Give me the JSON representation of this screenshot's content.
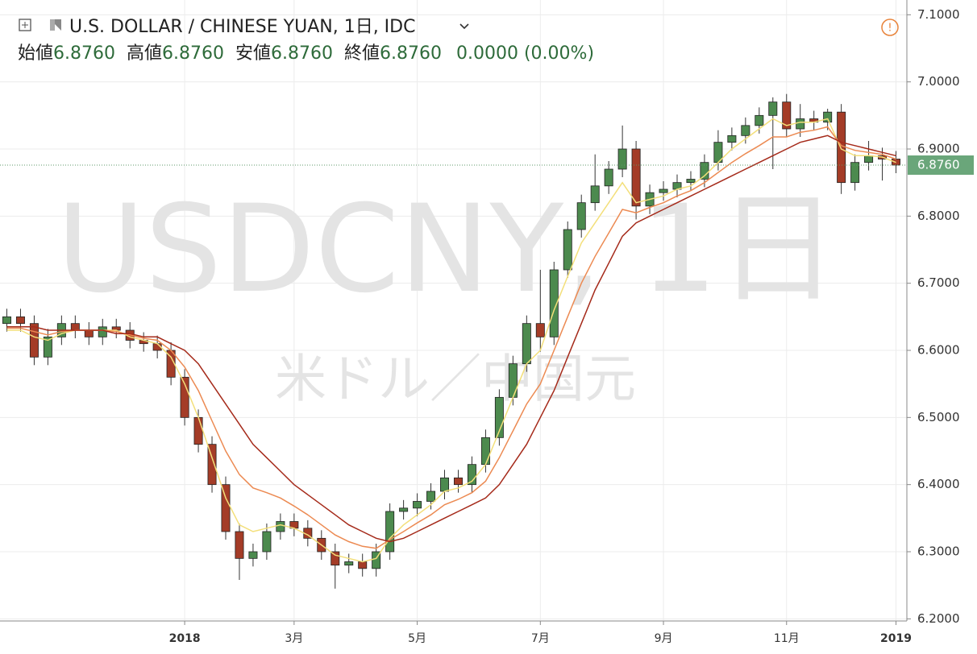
{
  "chart_data": {
    "type": "candlestick",
    "title": "U.S. DOLLAR / CHINESE YUAN, 1日, IDC",
    "watermark": "USDCNY, 1日",
    "watermark_subtitle": "米ドル／中国元",
    "ohlc_header": [
      {
        "label": "始値",
        "value": "6.8760"
      },
      {
        "label": "高値",
        "value": "6.8760"
      },
      {
        "label": "安値",
        "value": "6.8760"
      },
      {
        "label": "終値",
        "value": "6.8760"
      }
    ],
    "change": "0.0000 (0.00%)",
    "last_label": "6.8760",
    "categories": [
      null,
      null,
      null,
      null,
      null,
      null,
      null,
      null,
      null,
      null,
      null,
      null,
      null,
      "2018",
      null,
      null,
      null,
      null,
      null,
      null,
      null,
      "3月",
      null,
      null,
      null,
      null,
      null,
      null,
      null,
      null,
      "5月",
      null,
      null,
      null,
      null,
      null,
      null,
      null,
      null,
      "7月",
      null,
      null,
      null,
      null,
      null,
      null,
      null,
      null,
      "9月",
      null,
      null,
      null,
      null,
      null,
      null,
      null,
      null,
      "11月",
      null,
      null,
      null,
      null,
      null,
      null,
      null,
      "2019"
    ],
    "open": [
      6.64,
      6.65,
      6.64,
      6.59,
      6.62,
      6.64,
      6.63,
      6.62,
      6.635,
      6.63,
      6.615,
      6.61,
      6.6,
      6.56,
      6.5,
      6.46,
      6.4,
      6.33,
      6.29,
      6.3,
      6.33,
      6.345,
      6.335,
      6.32,
      6.3,
      6.28,
      6.285,
      6.275,
      6.3,
      6.36,
      6.365,
      6.375,
      6.39,
      6.41,
      6.4,
      6.43,
      6.47,
      6.53,
      6.58,
      6.64,
      6.62,
      6.72,
      6.78,
      6.82,
      6.845,
      6.87,
      6.9,
      6.815,
      6.835,
      6.84,
      6.85,
      6.855,
      6.88,
      6.91,
      6.92,
      6.935,
      6.95,
      6.97,
      6.93,
      6.945,
      6.94,
      6.955,
      6.85,
      6.88,
      6.89,
      6.885
    ],
    "high": [
      6.662,
      6.662,
      6.652,
      6.632,
      6.652,
      6.652,
      6.642,
      6.647,
      6.647,
      6.642,
      6.627,
      6.622,
      6.612,
      6.572,
      6.512,
      6.472,
      6.412,
      6.342,
      6.312,
      6.342,
      6.357,
      6.357,
      6.347,
      6.332,
      6.312,
      6.297,
      6.297,
      6.312,
      6.372,
      6.377,
      6.387,
      6.402,
      6.422,
      6.422,
      6.442,
      6.482,
      6.542,
      6.592,
      6.652,
      6.72,
      6.732,
      6.792,
      6.832,
      6.892,
      6.882,
      6.935,
      6.912,
      6.847,
      6.852,
      6.862,
      6.867,
      6.892,
      6.928,
      6.932,
      6.947,
      6.962,
      6.977,
      6.982,
      6.967,
      6.957,
      6.96,
      6.967,
      6.892,
      6.912,
      6.902,
      6.897
    ],
    "low": [
      6.628,
      6.628,
      6.578,
      6.578,
      6.608,
      6.618,
      6.608,
      6.608,
      6.618,
      6.603,
      6.598,
      6.588,
      6.548,
      6.488,
      6.448,
      6.388,
      6.318,
      6.258,
      6.278,
      6.288,
      6.318,
      6.323,
      6.308,
      6.288,
      6.245,
      6.268,
      6.263,
      6.263,
      6.288,
      6.348,
      6.353,
      6.363,
      6.378,
      6.388,
      6.388,
      6.418,
      6.458,
      6.518,
      6.568,
      6.598,
      6.608,
      6.708,
      6.768,
      6.808,
      6.833,
      6.858,
      6.795,
      6.803,
      6.823,
      6.828,
      6.838,
      6.843,
      6.868,
      6.898,
      6.908,
      6.923,
      6.87,
      6.918,
      6.918,
      6.928,
      6.928,
      6.833,
      6.838,
      6.868,
      6.853,
      6.864
    ],
    "close": [
      6.65,
      6.64,
      6.59,
      6.62,
      6.64,
      6.63,
      6.62,
      6.635,
      6.63,
      6.615,
      6.61,
      6.6,
      6.56,
      6.5,
      6.46,
      6.4,
      6.33,
      6.29,
      6.3,
      6.33,
      6.345,
      6.335,
      6.32,
      6.3,
      6.28,
      6.285,
      6.275,
      6.3,
      6.36,
      6.365,
      6.375,
      6.39,
      6.41,
      6.4,
      6.43,
      6.47,
      6.53,
      6.58,
      6.64,
      6.62,
      6.72,
      6.78,
      6.82,
      6.845,
      6.87,
      6.9,
      6.815,
      6.835,
      6.84,
      6.85,
      6.855,
      6.88,
      6.91,
      6.92,
      6.935,
      6.95,
      6.97,
      6.93,
      6.945,
      6.94,
      6.955,
      6.85,
      6.88,
      6.89,
      6.885,
      6.876
    ],
    "up_color": "#4c8a4e",
    "down_color": "#a43c27",
    "moving_averages": [
      {
        "color": "#f3df7a",
        "values": [
          6.63,
          6.63,
          6.62,
          6.615,
          6.625,
          6.63,
          6.63,
          6.63,
          6.63,
          6.62,
          6.615,
          6.61,
          6.59,
          6.55,
          6.5,
          6.44,
          6.38,
          6.34,
          6.33,
          6.335,
          6.34,
          6.335,
          6.325,
          6.31,
          6.295,
          6.29,
          6.285,
          6.29,
          6.32,
          6.34,
          6.355,
          6.37,
          6.39,
          6.395,
          6.405,
          6.43,
          6.48,
          6.53,
          6.58,
          6.6,
          6.66,
          6.71,
          6.76,
          6.79,
          6.82,
          6.85,
          6.82,
          6.825,
          6.83,
          6.84,
          6.845,
          6.86,
          6.88,
          6.9,
          6.915,
          6.93,
          6.945,
          6.935,
          6.94,
          6.94,
          6.945,
          6.9,
          6.89,
          6.89,
          6.888,
          6.88
        ]
      },
      {
        "color": "#ec8a52",
        "values": [
          6.633,
          6.633,
          6.628,
          6.623,
          6.628,
          6.63,
          6.63,
          6.63,
          6.628,
          6.623,
          6.618,
          6.615,
          6.6,
          6.575,
          6.54,
          6.495,
          6.45,
          6.415,
          6.395,
          6.388,
          6.38,
          6.368,
          6.355,
          6.34,
          6.325,
          6.315,
          6.308,
          6.305,
          6.318,
          6.33,
          6.343,
          6.355,
          6.37,
          6.378,
          6.388,
          6.405,
          6.44,
          6.48,
          6.52,
          6.55,
          6.6,
          6.65,
          6.7,
          6.74,
          6.775,
          6.81,
          6.805,
          6.813,
          6.82,
          6.83,
          6.838,
          6.85,
          6.865,
          6.88,
          6.893,
          6.905,
          6.918,
          6.918,
          6.925,
          6.928,
          6.933,
          6.905,
          6.898,
          6.895,
          6.892,
          6.885
        ]
      },
      {
        "color": "#a52a1a",
        "values": [
          6.635,
          6.635,
          6.635,
          6.63,
          6.63,
          6.63,
          6.63,
          6.63,
          6.625,
          6.625,
          6.62,
          6.62,
          6.61,
          6.6,
          6.58,
          6.55,
          6.52,
          6.49,
          6.46,
          6.44,
          6.42,
          6.4,
          6.385,
          6.37,
          6.355,
          6.34,
          6.33,
          6.32,
          6.315,
          6.32,
          6.33,
          6.34,
          6.35,
          6.36,
          6.37,
          6.38,
          6.4,
          6.43,
          6.46,
          6.5,
          6.54,
          6.59,
          6.64,
          6.69,
          6.73,
          6.77,
          6.79,
          6.8,
          6.81,
          6.82,
          6.83,
          6.84,
          6.85,
          6.86,
          6.87,
          6.88,
          6.89,
          6.9,
          6.91,
          6.915,
          6.92,
          6.91,
          6.905,
          6.9,
          6.895,
          6.89
        ]
      }
    ],
    "ylim": [
      6.198,
      7.116
    ],
    "yticks": [
      {
        "value": 6.2,
        "label": "6.2000"
      },
      {
        "value": 6.3,
        "label": "6.3000"
      },
      {
        "value": 6.4,
        "label": "6.4000"
      },
      {
        "value": 6.5,
        "label": "6.5000"
      },
      {
        "value": 6.6,
        "label": "6.6000"
      },
      {
        "value": 6.7,
        "label": "6.7000"
      },
      {
        "value": 6.8,
        "label": "6.8000"
      },
      {
        "value": 6.9,
        "label": "6.9000"
      },
      {
        "value": 7.0,
        "label": "7.0000"
      },
      {
        "value": 7.1,
        "label": "7.1000"
      }
    ],
    "grid": true
  }
}
